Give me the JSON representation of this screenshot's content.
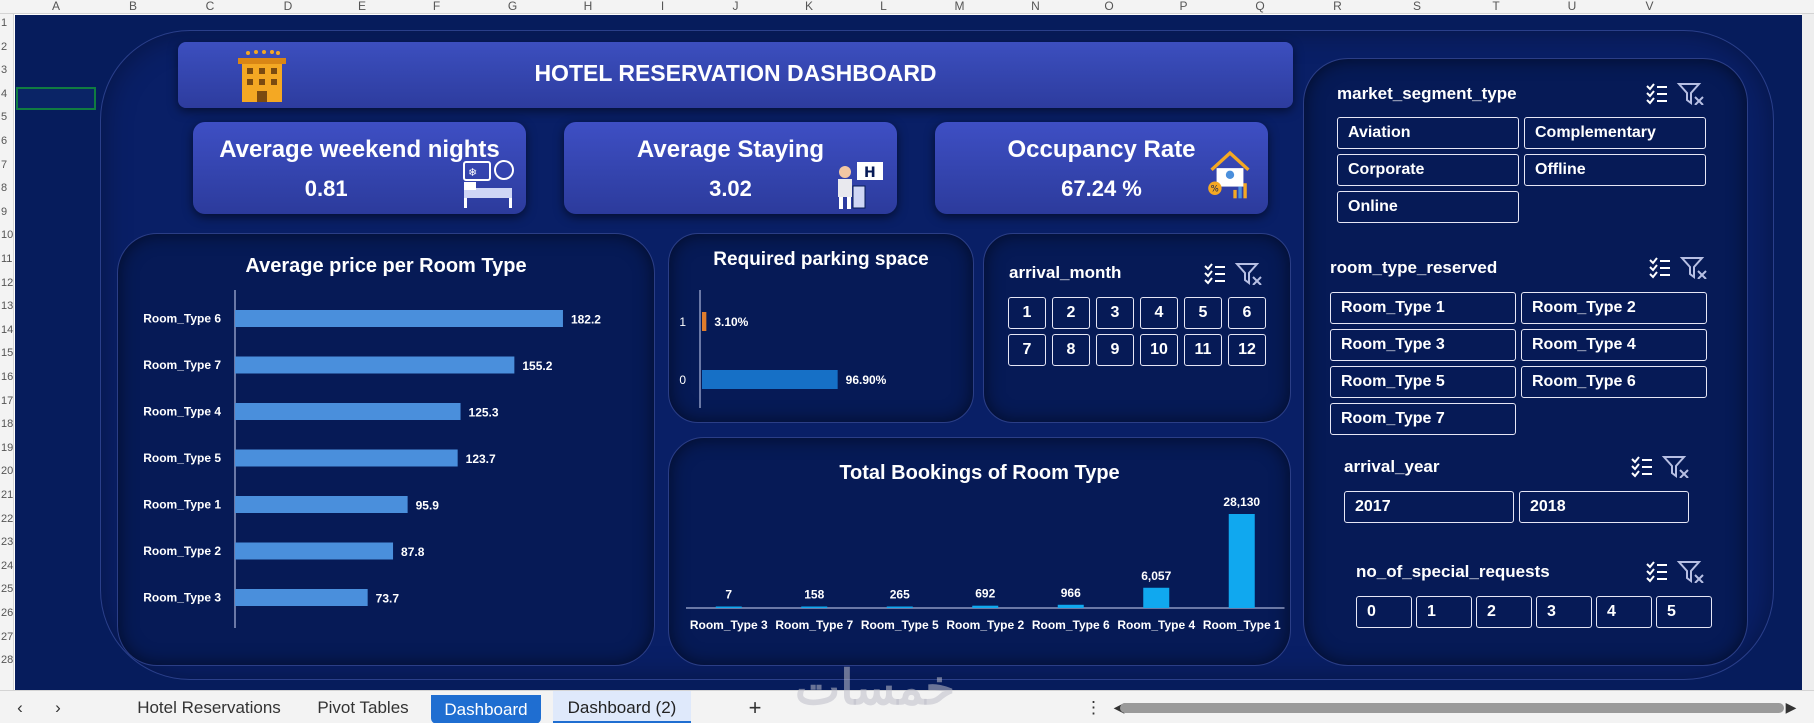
{
  "excel": {
    "columns": [
      "A",
      "B",
      "C",
      "D",
      "E",
      "F",
      "G",
      "H",
      "I",
      "J",
      "K",
      "L",
      "M",
      "N",
      "O",
      "P",
      "Q",
      "R",
      "S",
      "T",
      "U",
      "V"
    ],
    "rows": [
      "1",
      "2",
      "3",
      "4",
      "5",
      "6",
      "7",
      "8",
      "9",
      "10",
      "11",
      "12",
      "13",
      "14",
      "15",
      "16",
      "17",
      "18",
      "19",
      "20",
      "21",
      "22",
      "23",
      "24",
      "25",
      "26",
      "27",
      "28"
    ],
    "sheet_tabs": [
      "Hotel Reservations",
      "Pivot Tables",
      "Dashboard",
      "Dashboard  (2)"
    ],
    "add_sheet": "+",
    "nav_prev": "‹",
    "nav_next": "›",
    "more": "⋮"
  },
  "dashboard": {
    "title": "HOTEL RESERVATION DASHBOARD",
    "kpis": [
      {
        "label": "Average weekend nights",
        "value": "0.81",
        "icon": "bed-icon"
      },
      {
        "label": "Average Staying",
        "value": "3.02",
        "icon": "bellboy-icon"
      },
      {
        "label": "Occupancy Rate",
        "value": "67.24 %",
        "icon": "house-chart-icon"
      }
    ]
  },
  "chart_price": {
    "title": "Average price per Room Type",
    "type": "bar",
    "orientation": "horizontal",
    "categories": [
      "Room_Type 6",
      "Room_Type 7",
      "Room_Type 4",
      "Room_Type 5",
      "Room_Type 1",
      "Room_Type 2",
      "Room_Type 3"
    ],
    "values": [
      182.2,
      155.2,
      125.3,
      123.7,
      95.9,
      87.8,
      73.7
    ],
    "labels": [
      "182.2",
      "155.2",
      "125.3",
      "123.7",
      "95.9",
      "87.8",
      "73.7"
    ],
    "xlim": [
      0,
      200
    ],
    "color": "#4a8fdc"
  },
  "chart_parking": {
    "title": "Required parking space",
    "type": "bar",
    "orientation": "horizontal",
    "categories": [
      "1",
      "0"
    ],
    "values": [
      3.1,
      96.9
    ],
    "labels": [
      "3.10%",
      "96.90%"
    ],
    "colors": [
      "#e07c2c",
      "#1670c6"
    ],
    "xlim": [
      0,
      200
    ]
  },
  "chart_bookings": {
    "title": "Total Bookings of Room Type",
    "type": "bar",
    "categories": [
      "Room_Type 3",
      "Room_Type 7",
      "Room_Type 5",
      "Room_Type 2",
      "Room_Type 6",
      "Room_Type 4",
      "Room_Type 1"
    ],
    "values": [
      7,
      158,
      265,
      692,
      966,
      6057,
      28130
    ],
    "labels": [
      "7",
      "158",
      "265",
      "692",
      "966",
      "6,057",
      "28,130"
    ],
    "ylim": [
      0,
      28130
    ],
    "color": "#10a8ef"
  },
  "slicers": {
    "arrival_month": {
      "title": "arrival_month",
      "items": [
        "1",
        "2",
        "3",
        "4",
        "5",
        "6",
        "7",
        "8",
        "9",
        "10",
        "11",
        "12"
      ]
    },
    "market_segment_type": {
      "title": "market_segment_type",
      "items": [
        "Aviation",
        "Complementary",
        "Corporate",
        "Offline",
        "Online"
      ]
    },
    "room_type_reserved": {
      "title": "room_type_reserved",
      "items": [
        "Room_Type 1",
        "Room_Type 2",
        "Room_Type 3",
        "Room_Type 4",
        "Room_Type 5",
        "Room_Type 6",
        "Room_Type 7"
      ]
    },
    "arrival_year": {
      "title": "arrival_year",
      "items": [
        "2017",
        "2018"
      ]
    },
    "no_of_special_requests": {
      "title": "no_of_special_requests",
      "items": [
        "0",
        "1",
        "2",
        "3",
        "4",
        "5"
      ]
    }
  },
  "watermark": "خمسات",
  "colors": {
    "background": "#061c5c",
    "banner": "#3543b2",
    "slicer_border": "#e6e6f5"
  }
}
